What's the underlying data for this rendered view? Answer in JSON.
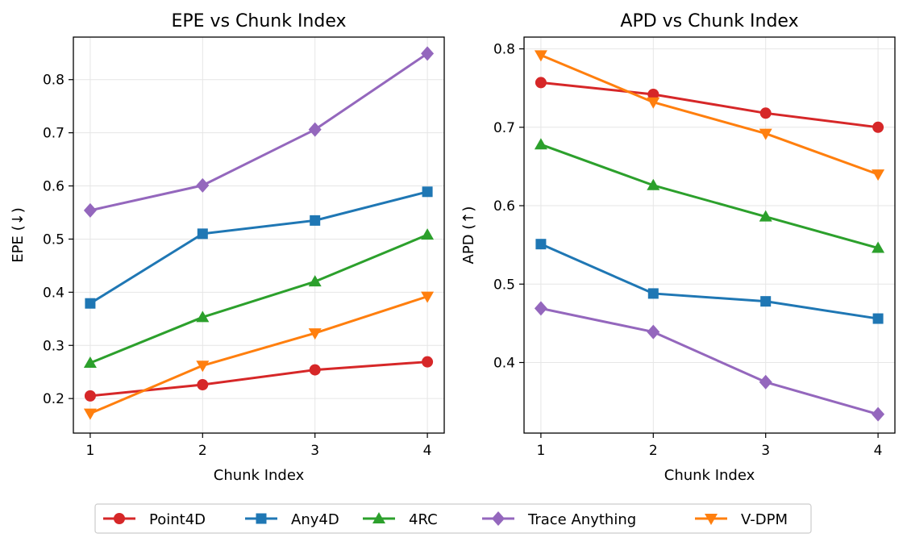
{
  "chart_data": [
    {
      "type": "line",
      "title": "EPE vs Chunk Index",
      "xlabel": "Chunk Index",
      "ylabel": "EPE (↓)",
      "x": [
        1,
        2,
        3,
        4
      ],
      "xticks": [
        "1",
        "2",
        "3",
        "4"
      ],
      "yticks": [
        "0.2",
        "0.3",
        "0.4",
        "0.5",
        "0.6",
        "0.7",
        "0.8"
      ],
      "xlim": [
        0.85,
        4.15
      ],
      "ylim": [
        0.135,
        0.88
      ],
      "grid": true,
      "series": [
        {
          "name": "Point4D",
          "values": [
            0.205,
            0.226,
            0.254,
            0.269
          ]
        },
        {
          "name": "Any4D",
          "values": [
            0.379,
            0.51,
            0.535,
            0.589
          ]
        },
        {
          "name": "4RC",
          "values": [
            0.267,
            0.353,
            0.42,
            0.508
          ]
        },
        {
          "name": "Trace Anything",
          "values": [
            0.554,
            0.601,
            0.706,
            0.849
          ]
        },
        {
          "name": "V-DPM",
          "values": [
            0.172,
            0.262,
            0.323,
            0.392
          ]
        }
      ]
    },
    {
      "type": "line",
      "title": "APD vs Chunk Index",
      "xlabel": "Chunk Index",
      "ylabel": "APD (↑)",
      "x": [
        1,
        2,
        3,
        4
      ],
      "xticks": [
        "1",
        "2",
        "3",
        "4"
      ],
      "yticks": [
        "0.4",
        "0.5",
        "0.6",
        "0.7",
        "0.8"
      ],
      "xlim": [
        0.85,
        4.15
      ],
      "ylim": [
        0.31,
        0.815
      ],
      "grid": true,
      "series": [
        {
          "name": "Point4D",
          "values": [
            0.757,
            0.742,
            0.718,
            0.7
          ]
        },
        {
          "name": "Any4D",
          "values": [
            0.551,
            0.488,
            0.478,
            0.456
          ]
        },
        {
          "name": "4RC",
          "values": [
            0.678,
            0.626,
            0.586,
            0.546
          ]
        },
        {
          "name": "Trace Anything",
          "values": [
            0.469,
            0.439,
            0.375,
            0.334
          ]
        },
        {
          "name": "V-DPM",
          "values": [
            0.792,
            0.732,
            0.692,
            0.64
          ]
        }
      ]
    }
  ],
  "legend": {
    "placement": "bottom",
    "entries": [
      {
        "name": "Point4D",
        "color": "#d62728",
        "marker": "circle"
      },
      {
        "name": "Any4D",
        "color": "#1f77b4",
        "marker": "square"
      },
      {
        "name": "4RC",
        "color": "#2ca02c",
        "marker": "triangle-up"
      },
      {
        "name": "Trace Anything",
        "color": "#9467bd",
        "marker": "diamond"
      },
      {
        "name": "V-DPM",
        "color": "#ff7f0e",
        "marker": "triangle-down"
      }
    ]
  }
}
